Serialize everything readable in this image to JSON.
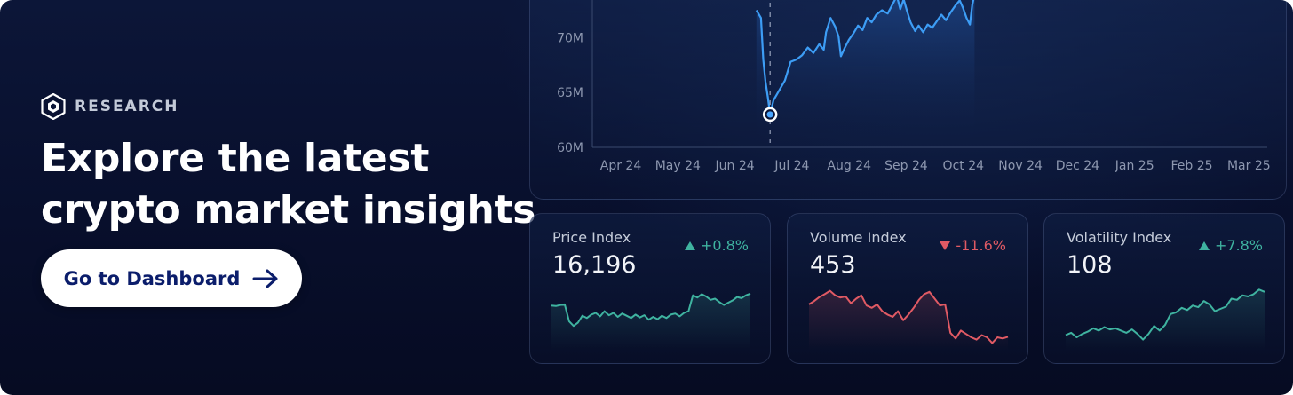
{
  "hero": {
    "eyebrow": "RESEARCH",
    "headline_line1": "Explore the latest",
    "headline_line2": "crypto market insights",
    "cta_label": "Go to Dashboard"
  },
  "chart_data": {
    "type": "line",
    "title": "",
    "xlabel": "",
    "ylabel": "",
    "x": [
      "Apr 24",
      "May 24",
      "Jun 24",
      "Jul 24",
      "Aug 24",
      "Sep 24",
      "Oct 24",
      "Nov 24",
      "Dec 24",
      "Jan 25",
      "Feb 25",
      "Mar 25"
    ],
    "y_ticks": [
      "60M",
      "65M",
      "70M"
    ],
    "ylim": [
      60,
      74
    ],
    "visible_x_range": [
      2.5,
      7.2
    ],
    "series": [
      {
        "color": "#3d9df5",
        "points": [
          [
            2.5,
            72.5
          ],
          [
            2.58,
            71.8
          ],
          [
            2.62,
            68.0
          ],
          [
            2.66,
            66.0
          ],
          [
            2.7,
            64.6
          ],
          [
            2.74,
            63.0
          ],
          [
            2.8,
            64.3
          ],
          [
            2.9,
            65.2
          ],
          [
            3.0,
            66.1
          ],
          [
            3.1,
            67.8
          ],
          [
            3.2,
            68.0
          ],
          [
            3.3,
            68.4
          ],
          [
            3.4,
            69.1
          ],
          [
            3.5,
            68.6
          ],
          [
            3.6,
            69.4
          ],
          [
            3.68,
            68.9
          ],
          [
            3.72,
            70.5
          ],
          [
            3.8,
            71.8
          ],
          [
            3.88,
            71.0
          ],
          [
            3.94,
            70.1
          ],
          [
            3.98,
            68.3
          ],
          [
            4.05,
            69.1
          ],
          [
            4.12,
            69.8
          ],
          [
            4.2,
            70.4
          ],
          [
            4.28,
            71.1
          ],
          [
            4.36,
            70.7
          ],
          [
            4.44,
            71.8
          ],
          [
            4.52,
            71.4
          ],
          [
            4.6,
            72.1
          ],
          [
            4.7,
            72.5
          ],
          [
            4.8,
            72.2
          ],
          [
            4.9,
            73.2
          ],
          [
            4.96,
            73.8
          ],
          [
            5.02,
            72.6
          ],
          [
            5.08,
            73.5
          ],
          [
            5.14,
            72.4
          ],
          [
            5.2,
            71.4
          ],
          [
            5.28,
            70.6
          ],
          [
            5.34,
            71.1
          ],
          [
            5.42,
            70.5
          ],
          [
            5.5,
            71.2
          ],
          [
            5.58,
            70.9
          ],
          [
            5.66,
            71.5
          ],
          [
            5.74,
            72.1
          ],
          [
            5.82,
            71.6
          ],
          [
            5.9,
            72.3
          ],
          [
            5.98,
            72.9
          ],
          [
            6.06,
            73.4
          ],
          [
            6.12,
            72.7
          ],
          [
            6.18,
            71.8
          ],
          [
            6.24,
            71.2
          ],
          [
            6.28,
            73.0
          ],
          [
            6.32,
            73.9
          ]
        ]
      }
    ],
    "marker": {
      "x": 2.74,
      "y": 63.0
    },
    "grid": false
  },
  "cards": [
    {
      "label": "Price Index",
      "value": "16,196",
      "change": "+0.8%",
      "direction": "up",
      "color": "#3fb3a0",
      "spark": [
        0.3,
        0.31,
        0.29,
        0.28,
        0.58,
        0.66,
        0.6,
        0.48,
        0.52,
        0.46,
        0.43,
        0.49,
        0.4,
        0.47,
        0.43,
        0.5,
        0.44,
        0.48,
        0.52,
        0.46,
        0.51,
        0.47,
        0.55,
        0.5,
        0.54,
        0.48,
        0.52,
        0.46,
        0.44,
        0.49,
        0.43,
        0.4,
        0.12,
        0.16,
        0.1,
        0.14,
        0.2,
        0.18,
        0.24,
        0.29,
        0.25,
        0.21,
        0.15,
        0.17,
        0.12,
        0.09
      ]
    },
    {
      "label": "Volume Index",
      "value": "453",
      "change": "-11.6%",
      "direction": "down",
      "color": "#e05a64",
      "spark": [
        0.28,
        0.22,
        0.15,
        0.1,
        0.04,
        0.12,
        0.16,
        0.14,
        0.26,
        0.18,
        0.12,
        0.3,
        0.34,
        0.28,
        0.4,
        0.46,
        0.5,
        0.4,
        0.56,
        0.46,
        0.34,
        0.2,
        0.1,
        0.06,
        0.18,
        0.3,
        0.28,
        0.78,
        0.88,
        0.74,
        0.8,
        0.86,
        0.9,
        0.82,
        0.86,
        0.96,
        0.86,
        0.88,
        0.85
      ]
    },
    {
      "label": "Volatility Index",
      "value": "108",
      "change": "+7.8%",
      "direction": "up",
      "color": "#3fb3a0",
      "spark": [
        0.82,
        0.78,
        0.86,
        0.8,
        0.76,
        0.7,
        0.74,
        0.68,
        0.72,
        0.7,
        0.74,
        0.78,
        0.72,
        0.8,
        0.9,
        0.8,
        0.66,
        0.74,
        0.64,
        0.45,
        0.42,
        0.34,
        0.38,
        0.3,
        0.33,
        0.22,
        0.28,
        0.4,
        0.36,
        0.32,
        0.18,
        0.2,
        0.12,
        0.14,
        0.1,
        0.02,
        0.06
      ]
    }
  ]
}
